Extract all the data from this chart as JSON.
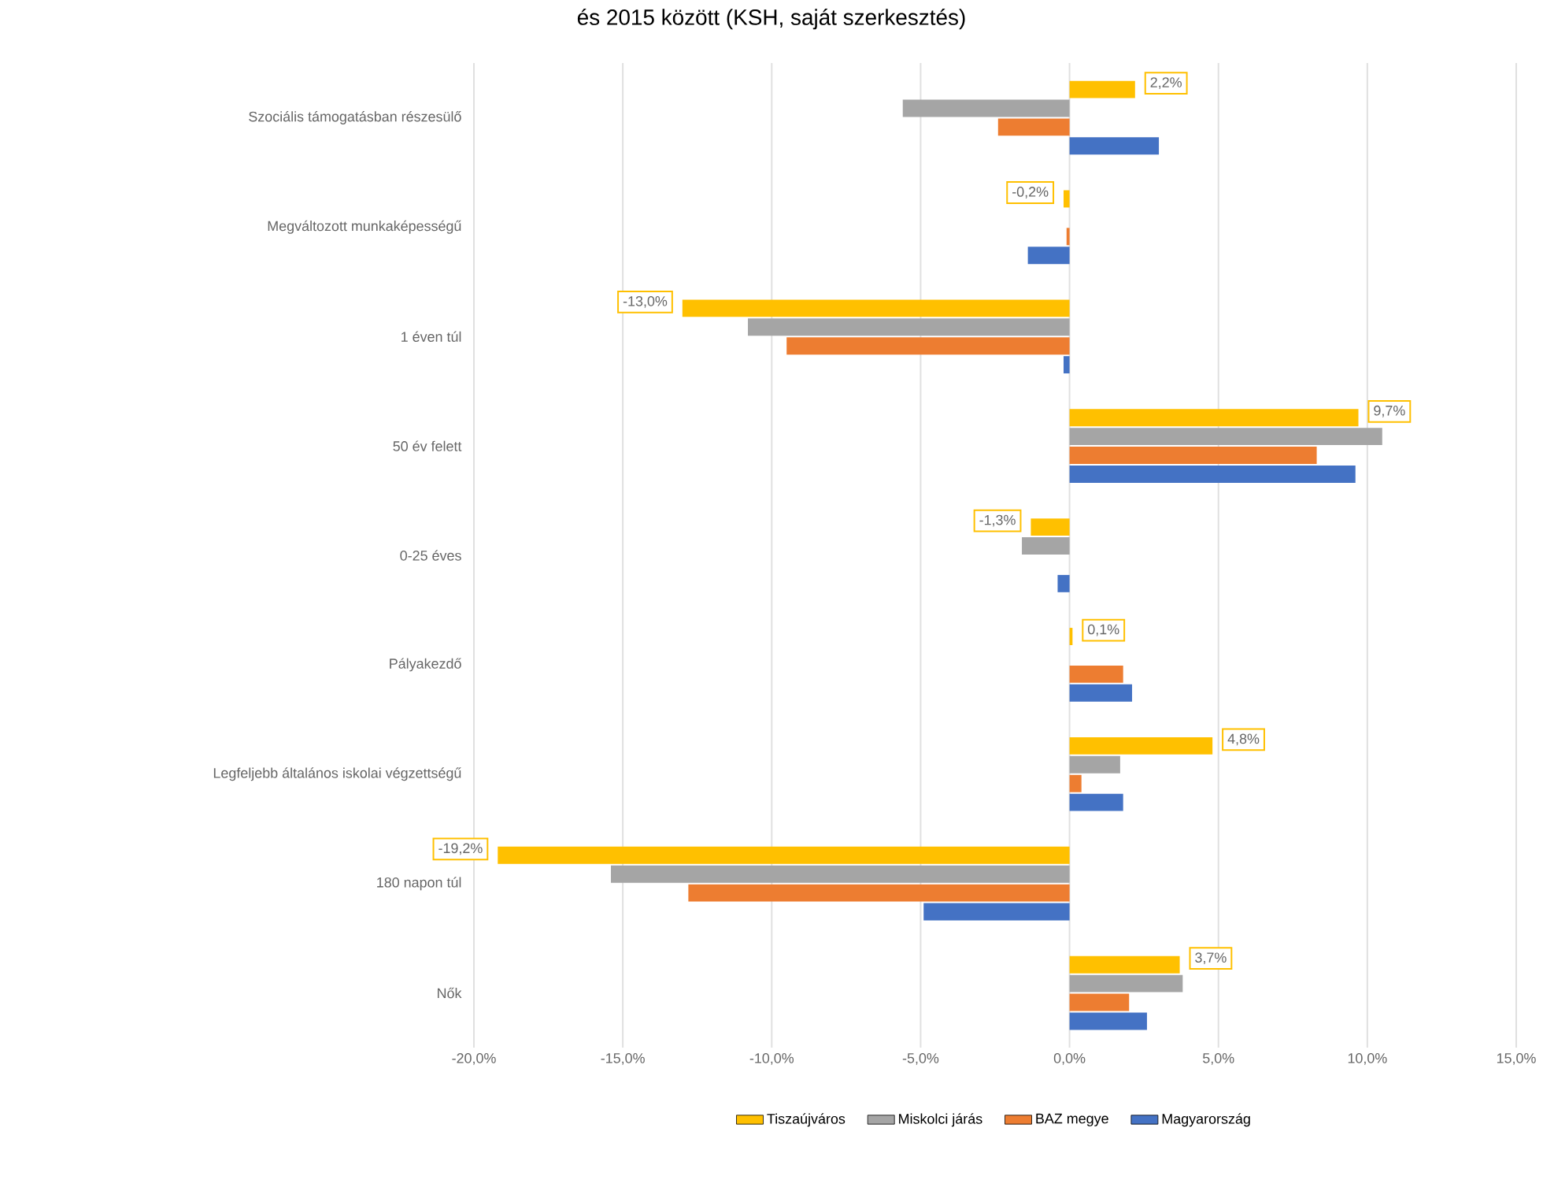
{
  "chart_data": {
    "type": "bar",
    "orientation": "horizontal",
    "title": "és 2015 között (KSH, saját szerkesztés)",
    "categories": [
      "Szociális támogatásban részesülő",
      "Megváltozott munkaképességű",
      "1 éven túl",
      "50 év felett",
      "0-25 éves",
      "Pályakezdő",
      "Legfeljebb általános iskolai végzettségű",
      "180 napon túl",
      "Nők"
    ],
    "series": [
      {
        "name": "Tiszaújváros",
        "color": "#ffc000",
        "values": [
          2.2,
          -0.2,
          -13.0,
          9.7,
          -1.3,
          0.1,
          4.8,
          -19.2,
          3.7
        ],
        "value_labels": [
          "2,2%",
          "-0,2%",
          "-13,0%",
          "9,7%",
          "-1,3%",
          "0,1%",
          "4,8%",
          "-19,2%",
          "3,7%"
        ]
      },
      {
        "name": "Miskolci járás",
        "color": "#a5a5a5",
        "values": [
          -5.6,
          0,
          -10.8,
          10.5,
          -1.6,
          0,
          1.7,
          -15.4,
          3.8
        ]
      },
      {
        "name": "BAZ megye",
        "color": "#ed7d31",
        "values": [
          -2.4,
          -0.1,
          -9.5,
          8.3,
          0,
          1.8,
          0.4,
          -12.8,
          2.0
        ]
      },
      {
        "name": "Magyarország",
        "color": "#4472c4",
        "values": [
          3.0,
          -1.4,
          -0.2,
          9.6,
          -0.4,
          2.1,
          1.8,
          -4.9,
          2.6
        ]
      }
    ],
    "xlim": [
      -20,
      15
    ],
    "xticks": [
      {
        "value": -20,
        "label": "-20,0%"
      },
      {
        "value": -15,
        "label": "-15,0%"
      },
      {
        "value": -10,
        "label": "-10,0%"
      },
      {
        "value": -5,
        "label": "-5,0%"
      },
      {
        "value": 0,
        "label": "0,0%"
      },
      {
        "value": 5,
        "label": "5,0%"
      },
      {
        "value": 10,
        "label": "10,0%"
      },
      {
        "value": 15,
        "label": "15,0%"
      }
    ],
    "grid": "x",
    "legend": "bottom"
  }
}
